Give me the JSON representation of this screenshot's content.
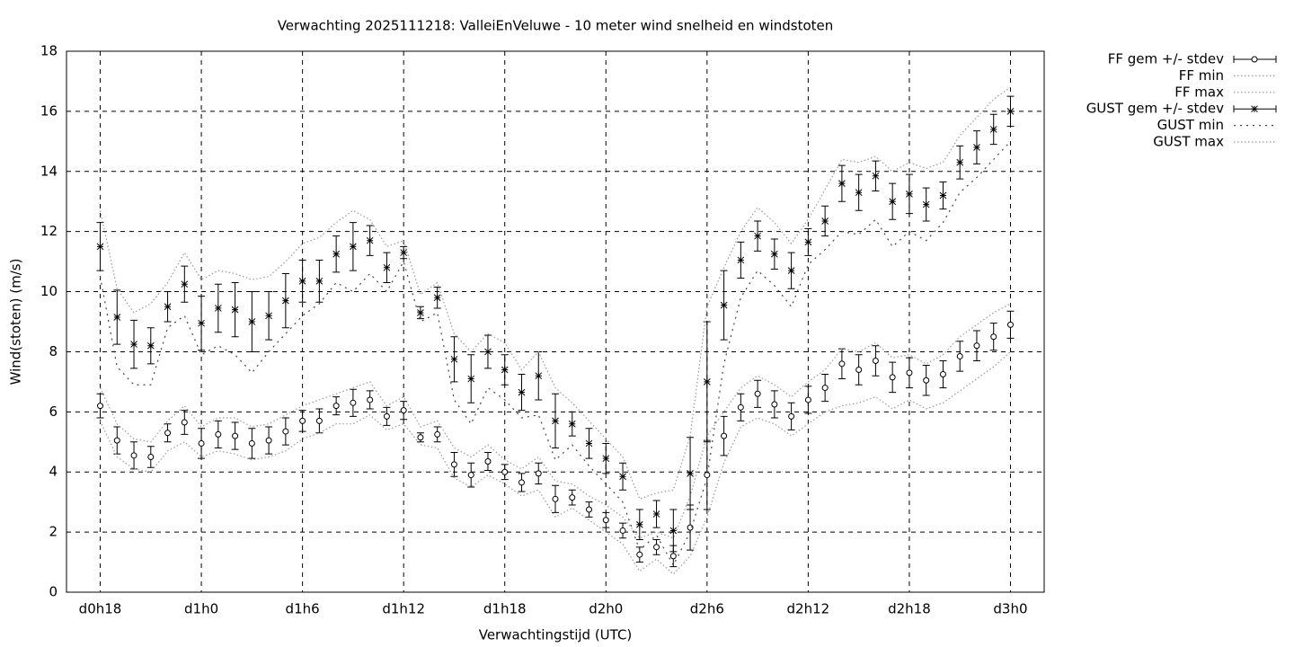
{
  "chart_data": {
    "type": "errorbar-line",
    "title": "Verwachting 2025111218: ValleiEnVeluwe - 10 meter wind snelheid en windstoten",
    "xlabel": "Verwachtingstijd (UTC)",
    "ylabel": "Wind(stoten) (m/s)",
    "x": [
      18,
      19,
      20,
      21,
      22,
      23,
      24,
      25,
      26,
      27,
      28,
      29,
      30,
      31,
      32,
      33,
      34,
      35,
      36,
      37,
      38,
      39,
      40,
      41,
      42,
      43,
      44,
      45,
      46,
      47,
      48,
      49,
      50,
      51,
      52,
      53,
      54,
      55,
      56,
      57,
      58,
      59,
      60,
      61,
      62,
      63,
      64,
      65,
      66,
      67,
      68,
      69,
      70,
      71,
      72
    ],
    "xlim": [
      16,
      74
    ],
    "xticks": [
      {
        "value": 18,
        "label": "d0h18"
      },
      {
        "value": 24,
        "label": "d1h0"
      },
      {
        "value": 30,
        "label": "d1h6"
      },
      {
        "value": 36,
        "label": "d1h12"
      },
      {
        "value": 42,
        "label": "d1h18"
      },
      {
        "value": 48,
        "label": "d2h0"
      },
      {
        "value": 54,
        "label": "d2h6"
      },
      {
        "value": 60,
        "label": "d2h12"
      },
      {
        "value": 66,
        "label": "d2h18"
      },
      {
        "value": 72,
        "label": "d3h0"
      }
    ],
    "ylim": [
      0,
      18
    ],
    "yticks": [
      0,
      2,
      4,
      6,
      8,
      10,
      12,
      14,
      16,
      18
    ],
    "grid": true,
    "legend": "outside-right",
    "series": [
      {
        "name": "FF gem +/- stdev",
        "color": "#000000",
        "style": "errorbars",
        "marker": "circle",
        "values": [
          6.2,
          5.05,
          4.55,
          4.5,
          5.3,
          5.65,
          4.95,
          5.25,
          5.2,
          4.95,
          5.05,
          5.35,
          5.7,
          5.7,
          6.2,
          6.3,
          6.4,
          5.85,
          6.05,
          5.15,
          5.25,
          4.25,
          3.9,
          4.35,
          4.0,
          3.65,
          3.95,
          3.1,
          3.15,
          2.75,
          2.4,
          2.05,
          1.25,
          1.5,
          1.2,
          2.15,
          3.9,
          5.2,
          6.15,
          6.6,
          6.25,
          5.85,
          6.4,
          6.8,
          7.6,
          7.4,
          7.7,
          7.15,
          7.3,
          7.05,
          7.25,
          7.85,
          8.2,
          8.5,
          8.9
        ],
        "errors": [
          0.4,
          0.45,
          0.45,
          0.35,
          0.3,
          0.4,
          0.5,
          0.45,
          0.45,
          0.5,
          0.45,
          0.45,
          0.35,
          0.4,
          0.3,
          0.45,
          0.3,
          0.3,
          0.3,
          0.15,
          0.25,
          0.4,
          0.4,
          0.3,
          0.25,
          0.3,
          0.35,
          0.45,
          0.25,
          0.25,
          0.25,
          0.25,
          0.25,
          0.25,
          0.35,
          0.75,
          1.15,
          0.65,
          0.45,
          0.45,
          0.45,
          0.45,
          0.45,
          0.45,
          0.5,
          0.5,
          0.5,
          0.5,
          0.5,
          0.5,
          0.45,
          0.5,
          0.5,
          0.45,
          0.45
        ]
      },
      {
        "name": "FF min",
        "color": "#999999",
        "style": "dotted",
        "values": [
          5.7,
          4.5,
          4.1,
          4.0,
          4.7,
          5.0,
          4.5,
          4.7,
          4.6,
          4.4,
          4.5,
          4.7,
          5.1,
          5.3,
          5.6,
          5.6,
          5.9,
          5.4,
          5.6,
          4.9,
          4.8,
          3.8,
          3.5,
          3.9,
          3.6,
          3.2,
          3.4,
          2.5,
          2.8,
          2.4,
          2.0,
          1.6,
          0.7,
          1.1,
          0.6,
          1.2,
          2.5,
          4.3,
          5.5,
          5.8,
          5.6,
          5.2,
          5.6,
          6.0,
          6.2,
          6.3,
          6.5,
          6.1,
          6.4,
          6.1,
          6.3,
          6.7,
          7.1,
          7.5,
          8.0
        ]
      },
      {
        "name": "FF max",
        "color": "#999999",
        "style": "dotted",
        "values": [
          6.8,
          5.6,
          5.1,
          5.0,
          5.7,
          6.2,
          5.5,
          5.8,
          5.8,
          5.5,
          5.6,
          5.9,
          6.2,
          6.4,
          6.6,
          6.8,
          7.0,
          6.2,
          6.5,
          5.5,
          5.7,
          4.8,
          4.5,
          4.9,
          4.4,
          4.1,
          4.5,
          3.7,
          3.6,
          3.2,
          2.9,
          2.5,
          1.8,
          2.0,
          1.8,
          3.2,
          5.2,
          6.0,
          6.8,
          7.2,
          6.9,
          6.5,
          7.0,
          7.4,
          8.1,
          8.0,
          8.3,
          7.8,
          7.9,
          7.6,
          7.9,
          8.5,
          8.9,
          9.3,
          9.6
        ]
      },
      {
        "name": "GUST gem +/- stdev",
        "color": "#000000",
        "style": "errorbars",
        "marker": "star",
        "values": [
          11.5,
          9.15,
          8.25,
          8.2,
          9.5,
          10.25,
          8.95,
          9.45,
          9.4,
          9.0,
          9.2,
          9.7,
          10.35,
          10.35,
          11.25,
          11.5,
          11.7,
          10.8,
          11.3,
          9.3,
          9.8,
          7.75,
          7.1,
          8.0,
          7.4,
          6.65,
          7.2,
          5.7,
          5.6,
          4.95,
          4.45,
          3.85,
          2.25,
          2.6,
          2.05,
          3.95,
          7.0,
          9.55,
          11.05,
          11.85,
          11.25,
          10.7,
          11.65,
          12.35,
          13.6,
          13.3,
          13.85,
          13.0,
          13.25,
          12.9,
          13.2,
          14.3,
          14.8,
          15.4,
          16.0
        ],
        "errors": [
          0.8,
          0.9,
          0.8,
          0.6,
          0.5,
          0.6,
          0.9,
          0.8,
          0.9,
          1.0,
          0.8,
          0.9,
          0.7,
          0.7,
          0.6,
          0.8,
          0.5,
          0.5,
          0.2,
          0.2,
          0.35,
          0.75,
          0.8,
          0.55,
          0.5,
          0.6,
          0.8,
          0.9,
          0.4,
          0.5,
          0.5,
          0.45,
          0.5,
          0.45,
          0.7,
          1.2,
          2.0,
          1.15,
          0.6,
          0.5,
          0.5,
          0.6,
          0.45,
          0.5,
          0.6,
          0.6,
          0.5,
          0.6,
          0.65,
          0.55,
          0.45,
          0.55,
          0.55,
          0.5,
          0.5
        ]
      },
      {
        "name": "GUST min",
        "color": "#444444",
        "style": "dotted-coarse",
        "values": [
          10.5,
          7.5,
          6.9,
          6.9,
          8.8,
          9.2,
          7.9,
          8.2,
          7.9,
          7.3,
          8.0,
          8.6,
          9.2,
          9.6,
          10.3,
          10.0,
          10.6,
          10.0,
          11.0,
          9.0,
          9.3,
          6.4,
          5.6,
          6.8,
          6.4,
          5.8,
          5.9,
          4.4,
          4.9,
          4.2,
          3.6,
          3.0,
          1.4,
          1.9,
          0.9,
          2.0,
          3.8,
          7.6,
          9.8,
          10.7,
          10.2,
          9.5,
          10.9,
          11.4,
          12.0,
          11.9,
          12.4,
          11.5,
          12.0,
          11.7,
          12.3,
          13.3,
          13.8,
          14.4,
          15.0
        ]
      },
      {
        "name": "GUST max",
        "color": "#999999",
        "style": "dotted",
        "values": [
          12.7,
          10.1,
          9.3,
          9.6,
          10.3,
          11.3,
          10.4,
          10.7,
          10.6,
          10.4,
          10.5,
          11.0,
          11.6,
          11.8,
          12.3,
          12.7,
          12.4,
          11.5,
          11.7,
          9.9,
          10.3,
          8.6,
          8.0,
          8.6,
          8.3,
          7.4,
          8.0,
          6.8,
          6.3,
          5.7,
          5.1,
          4.5,
          3.1,
          3.3,
          3.4,
          5.2,
          9.5,
          10.8,
          12.0,
          12.8,
          12.3,
          11.6,
          12.4,
          13.4,
          14.4,
          14.3,
          14.5,
          14.0,
          14.3,
          14.1,
          14.3,
          15.2,
          15.8,
          16.4,
          16.8
        ]
      }
    ]
  }
}
